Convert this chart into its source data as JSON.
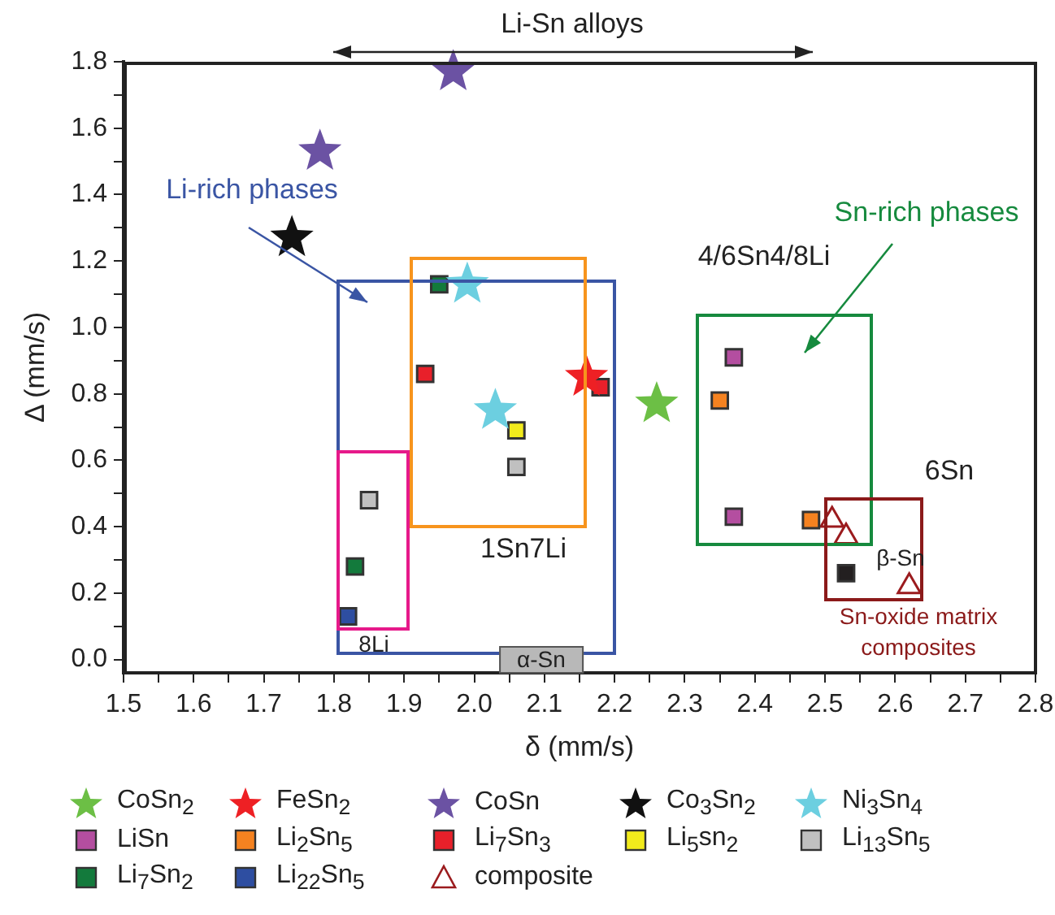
{
  "chart_data": {
    "type": "scatter",
    "xlabel": "δ (mm/s)",
    "ylabel": "Δ (mm/s)",
    "xlim": [
      1.5,
      2.8
    ],
    "ylim": [
      -0.04,
      1.8
    ],
    "xticks": [
      1.5,
      1.6,
      1.7,
      1.8,
      1.9,
      {
        "value": 2.0,
        "label": "2.0"
      },
      2.1,
      2.2,
      2.3,
      2.4,
      2.5,
      2.6,
      2.7,
      2.8,
      {
        "value": 1.55,
        "label": null
      },
      {
        "value": 1.65,
        "label": null
      },
      {
        "value": 1.75,
        "label": null
      },
      {
        "value": 1.85,
        "label": null
      },
      {
        "value": 1.95,
        "label": null
      },
      {
        "value": 2.05,
        "label": null
      },
      {
        "value": 2.15,
        "label": null
      },
      {
        "value": 2.25,
        "label": null
      },
      {
        "value": 2.35,
        "label": null
      },
      {
        "value": 2.45,
        "label": null
      },
      {
        "value": 2.55,
        "label": null
      },
      {
        "value": 2.65,
        "label": null
      },
      {
        "value": 2.75,
        "label": null
      }
    ],
    "yticks": [
      {
        "value": 0,
        "label": "0.0"
      },
      0.2,
      0.4,
      0.6,
      0.8,
      {
        "value": 1.0,
        "label": "1.0"
      },
      1.2,
      1.4,
      1.6,
      1.8,
      {
        "value": 0.1,
        "label": null
      },
      {
        "value": 0.3,
        "label": null
      },
      {
        "value": 0.5,
        "label": null
      },
      {
        "value": 0.7,
        "label": null
      },
      {
        "value": 0.9,
        "label": null
      },
      {
        "value": 1.1,
        "label": null
      },
      {
        "value": 1.3,
        "label": null
      },
      {
        "value": 1.5,
        "label": null
      },
      {
        "value": 1.7,
        "label": null
      }
    ],
    "grid": false,
    "legend": "bottom",
    "series": [
      {
        "name": "CoSn$_{2}$",
        "color": "#6cbf45",
        "marker": "star",
        "x": [
          2.26
        ],
        "values": [
          0.77
        ]
      },
      {
        "name": "FeSn$_{2}$",
        "color": "#ee2024",
        "marker": "star",
        "x": [
          2.16
        ],
        "values": [
          0.85
        ]
      },
      {
        "name": "CoSn",
        "color": "#6b52a3",
        "marker": "star",
        "x": [
          1.97,
          1.78
        ],
        "values": [
          1.77,
          1.53
        ]
      },
      {
        "name": "Co$_{3}$Sn$_{2}$",
        "color": "#111111",
        "marker": "star",
        "x": [
          1.74
        ],
        "values": [
          1.27
        ]
      },
      {
        "name": "Ni$_{3}$Sn$_{4}$",
        "color": "#6ccfe0",
        "marker": "star",
        "x": [
          1.99,
          2.03
        ],
        "values": [
          1.13,
          0.75
        ]
      },
      {
        "name": "LiSn",
        "color": "#b44ea0",
        "marker": "square",
        "x": [
          2.37,
          2.37
        ],
        "values": [
          0.91,
          0.43
        ]
      },
      {
        "name": "Li$_{2}$Sn$_{5}$",
        "color": "#f58220",
        "marker": "square",
        "x": [
          2.35,
          2.48
        ],
        "values": [
          0.78,
          0.42
        ]
      },
      {
        "name": "Li$_{7}$Sn$_{3}$",
        "color": "#e8202a",
        "marker": "square",
        "x": [
          1.93,
          2.18
        ],
        "values": [
          0.86,
          0.82
        ]
      },
      {
        "name": "Li$_{5}$sn$_{2}$",
        "color": "#f2eb1c",
        "marker": "square",
        "x": [
          2.06
        ],
        "values": [
          0.69
        ]
      },
      {
        "name": "Li$_{13}$Sn$_{5}$",
        "color": "#c0c0c0",
        "marker": "square",
        "x": [
          2.06,
          1.85
        ],
        "values": [
          0.58,
          0.48
        ]
      },
      {
        "name": "Li$_{7}$Sn$_{2}$",
        "color": "#137a3c",
        "marker": "square",
        "x": [
          1.95,
          1.83
        ],
        "values": [
          1.13,
          0.28
        ]
      },
      {
        "name": "Li$_{22}$Sn$_{5}$",
        "color": "#2e4ea1",
        "marker": "square",
        "x": [
          1.82
        ],
        "values": [
          0.13
        ]
      },
      {
        "name": "composite",
        "color": "#9b1b1e",
        "marker": "triangle",
        "x": [
          2.51,
          2.53,
          2.62
        ],
        "values": [
          0.42,
          0.37,
          0.22
        ]
      },
      {
        "color": "#231f20",
        "marker": "square",
        "x": [
          2.53
        ],
        "values": [
          0.26
        ]
      }
    ],
    "annotations": [
      "Li-Sn alloys",
      "Li-rich phases",
      "Sn-rich phases",
      "4/6Sn4/8Li",
      "1Sn7Li",
      "8Li",
      "α-Sn",
      "6Sn",
      "β-Sn",
      "Sn-oxide matrix composites"
    ]
  }
}
